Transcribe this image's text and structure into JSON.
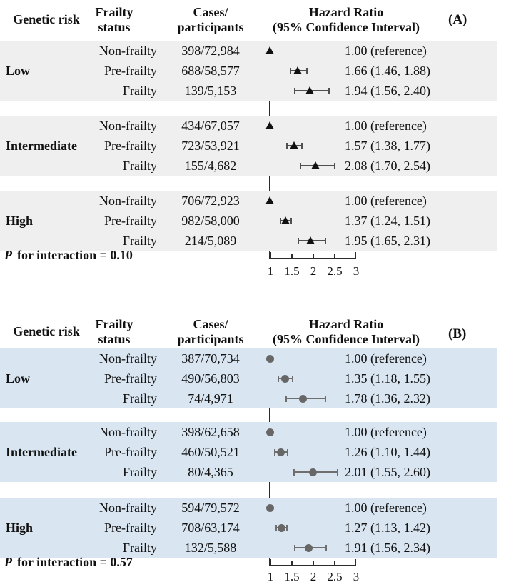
{
  "header_columns": {
    "genetic_risk": "Genetic risk",
    "frailty_line1": "Frailty",
    "frailty_line2": "status",
    "cases_line1": "Cases/",
    "cases_line2": "participants",
    "hr_line1": "Hazard Ratio",
    "hr_line2": "(95% Confidence Interval)"
  },
  "axis_ticks": [
    "1",
    "1.5",
    "2",
    "2.5",
    "3"
  ],
  "colors": {
    "panel_a_row_bg": "#efefef",
    "panel_b_row_bg": "#d9e6f2",
    "marker_a": "#111111",
    "ci_a": "#4f4f4f",
    "marker_b": "#676767",
    "ci_b": "#6e6e6e",
    "axis": "#2b2b2b"
  },
  "chart_data": [
    {
      "type": "forest",
      "panel_label": "(A)",
      "marker": "triangle",
      "xlabel": "Hazard Ratio (95% Confidence Interval)",
      "xlim": [
        1,
        3
      ],
      "ticks": [
        1,
        1.5,
        2,
        2.5,
        3
      ],
      "p_prefix": "P",
      "p_text": "for interaction = 0.10",
      "groups": [
        {
          "name": "Low",
          "rows": [
            {
              "frailty": "Non-frailty",
              "cases": "398/72,984",
              "hr": 1.0,
              "lo": null,
              "hi": null,
              "hr_label": "1.00 (reference)"
            },
            {
              "frailty": "Pre-frailty",
              "cases": "688/58,577",
              "hr": 1.66,
              "lo": 1.46,
              "hi": 1.88,
              "hr_label": "1.66 (1.46, 1.88)"
            },
            {
              "frailty": "Frailty",
              "cases": "139/5,153",
              "hr": 1.94,
              "lo": 1.56,
              "hi": 2.4,
              "hr_label": "1.94 (1.56, 2.40)"
            }
          ]
        },
        {
          "name": "Intermediate",
          "rows": [
            {
              "frailty": "Non-frailty",
              "cases": "434/67,057",
              "hr": 1.0,
              "lo": null,
              "hi": null,
              "hr_label": "1.00 (reference)"
            },
            {
              "frailty": "Pre-frailty",
              "cases": "723/53,921",
              "hr": 1.57,
              "lo": 1.38,
              "hi": 1.77,
              "hr_label": "1.57 (1.38, 1.77)"
            },
            {
              "frailty": "Frailty",
              "cases": "155/4,682",
              "hr": 2.08,
              "lo": 1.7,
              "hi": 2.54,
              "hr_label": "2.08 (1.70, 2.54)"
            }
          ]
        },
        {
          "name": "High",
          "rows": [
            {
              "frailty": "Non-frailty",
              "cases": "706/72,923",
              "hr": 1.0,
              "lo": null,
              "hi": null,
              "hr_label": "1.00 (reference)"
            },
            {
              "frailty": "Pre-frailty",
              "cases": "982/58,000",
              "hr": 1.37,
              "lo": 1.24,
              "hi": 1.51,
              "hr_label": "1.37 (1.24, 1.51)"
            },
            {
              "frailty": "Frailty",
              "cases": "214/5,089",
              "hr": 1.95,
              "lo": 1.65,
              "hi": 2.31,
              "hr_label": "1.95 (1.65, 2.31)"
            }
          ]
        }
      ]
    },
    {
      "type": "forest",
      "panel_label": "(B)",
      "marker": "circle",
      "xlabel": "Hazard Ratio (95% Confidence Interval)",
      "xlim": [
        1,
        3
      ],
      "ticks": [
        1,
        1.5,
        2,
        2.5,
        3
      ],
      "p_prefix": "P",
      "p_text": "for interaction = 0.57",
      "groups": [
        {
          "name": "Low",
          "rows": [
            {
              "frailty": "Non-frailty",
              "cases": "387/70,734",
              "hr": 1.0,
              "lo": null,
              "hi": null,
              "hr_label": "1.00 (reference)"
            },
            {
              "frailty": "Pre-frailty",
              "cases": "490/56,803",
              "hr": 1.35,
              "lo": 1.18,
              "hi": 1.55,
              "hr_label": "1.35 (1.18, 1.55)"
            },
            {
              "frailty": "Frailty",
              "cases": "74/4,971",
              "hr": 1.78,
              "lo": 1.36,
              "hi": 2.32,
              "hr_label": "1.78 (1.36, 2.32)"
            }
          ]
        },
        {
          "name": "Intermediate",
          "rows": [
            {
              "frailty": "Non-frailty",
              "cases": "398/62,658",
              "hr": 1.0,
              "lo": null,
              "hi": null,
              "hr_label": "1.00 (reference)"
            },
            {
              "frailty": "Pre-frailty",
              "cases": "460/50,521",
              "hr": 1.26,
              "lo": 1.1,
              "hi": 1.44,
              "hr_label": "1.26 (1.10, 1.44)"
            },
            {
              "frailty": "Frailty",
              "cases": "80/4,365",
              "hr": 2.01,
              "lo": 1.55,
              "hi": 2.6,
              "hr_label": "2.01 (1.55, 2.60)"
            }
          ]
        },
        {
          "name": "High",
          "rows": [
            {
              "frailty": "Non-frailty",
              "cases": "594/79,572",
              "hr": 1.0,
              "lo": null,
              "hi": null,
              "hr_label": "1.00 (reference)"
            },
            {
              "frailty": "Pre-frailty",
              "cases": "708/63,174",
              "hr": 1.27,
              "lo": 1.13,
              "hi": 1.42,
              "hr_label": "1.27 (1.13, 1.42)"
            },
            {
              "frailty": "Frailty",
              "cases": "132/5,588",
              "hr": 1.91,
              "lo": 1.56,
              "hi": 2.34,
              "hr_label": "1.91 (1.56, 2.34)"
            }
          ]
        }
      ]
    }
  ]
}
